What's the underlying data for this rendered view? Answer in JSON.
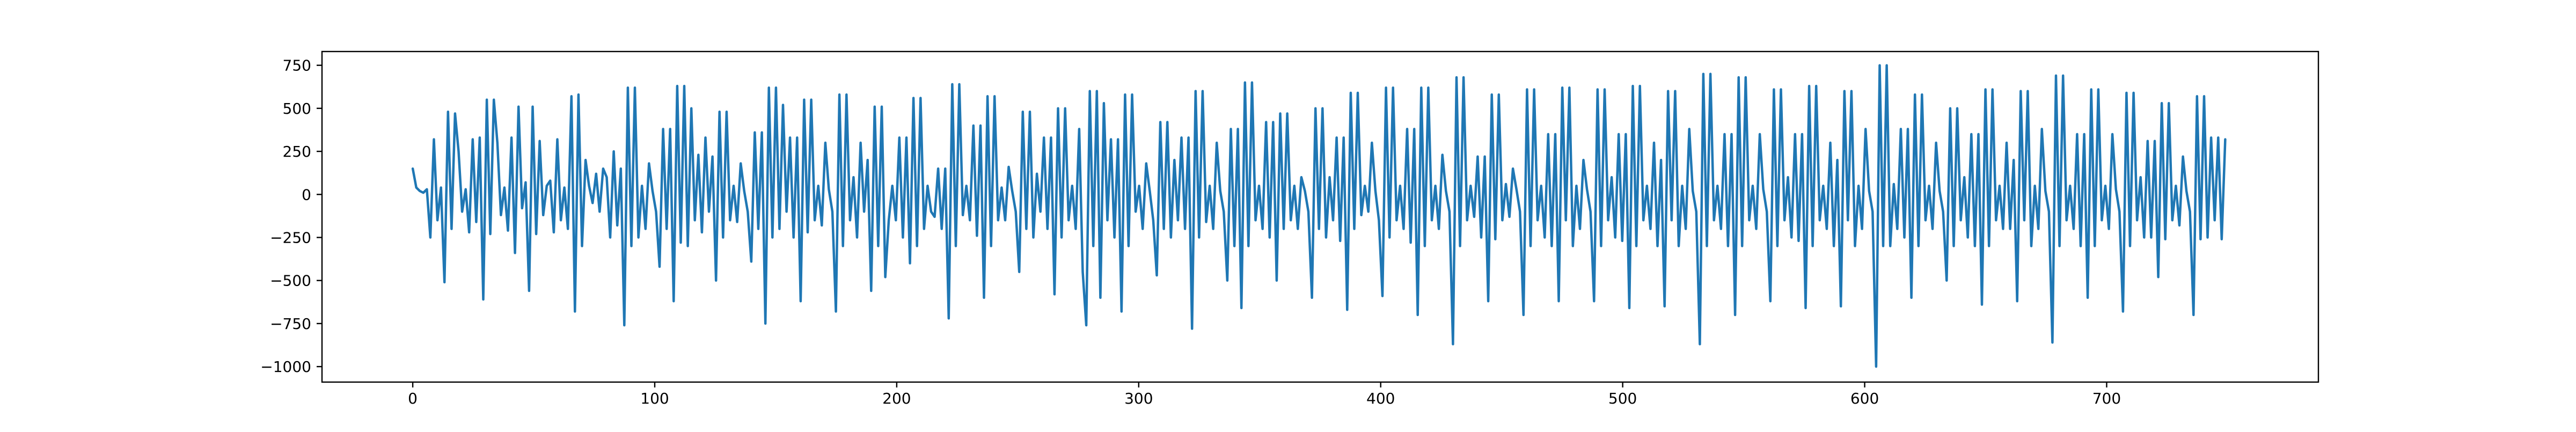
{
  "chart_data": {
    "type": "line",
    "title": "",
    "xlabel": "",
    "ylabel": "",
    "xlim": [
      -37.5,
      787.5
    ],
    "ylim": [
      -1090,
      830
    ],
    "x_ticks": [
      0,
      100,
      200,
      300,
      400,
      500,
      600,
      700
    ],
    "y_ticks": [
      -1000,
      -750,
      -500,
      -250,
      0,
      250,
      500,
      750
    ],
    "grid": false,
    "legend": "none",
    "series": [
      {
        "color": "#1f77b4",
        "x_start": 0,
        "x_step": 1,
        "values": [
          150,
          40,
          20,
          10,
          30,
          -250,
          320,
          -150,
          40,
          -510,
          480,
          -200,
          470,
          250,
          -100,
          30,
          -220,
          320,
          -160,
          330,
          -610,
          550,
          -230,
          550,
          300,
          -120,
          40,
          -210,
          330,
          -340,
          510,
          -80,
          70,
          -560,
          510,
          -230,
          310,
          -120,
          50,
          80,
          -220,
          320,
          -150,
          40,
          -200,
          570,
          -680,
          580,
          -300,
          200,
          50,
          -50,
          120,
          -100,
          150,
          100,
          -250,
          250,
          -180,
          150,
          -760,
          620,
          -300,
          620,
          -250,
          50,
          -200,
          180,
          20,
          -100,
          -420,
          380,
          -200,
          380,
          -620,
          630,
          -280,
          630,
          -300,
          500,
          -150,
          230,
          -220,
          330,
          -100,
          220,
          -500,
          480,
          -250,
          480,
          -150,
          50,
          -160,
          180,
          20,
          -100,
          -390,
          360,
          -200,
          360,
          -750,
          620,
          -250,
          620,
          -200,
          520,
          -100,
          330,
          -250,
          330,
          -620,
          550,
          -220,
          550,
          -150,
          50,
          -180,
          300,
          30,
          -100,
          -680,
          580,
          -300,
          580,
          -150,
          100,
          -250,
          300,
          -100,
          200,
          -560,
          510,
          -300,
          510,
          -480,
          -150,
          50,
          -150,
          330,
          -250,
          330,
          -400,
          560,
          -300,
          560,
          -200,
          50,
          -100,
          -130,
          150,
          -200,
          150,
          -720,
          640,
          -300,
          640,
          -120,
          50,
          -150,
          400,
          -240,
          400,
          -600,
          570,
          -300,
          570,
          -150,
          40,
          -150,
          160,
          20,
          -100,
          -450,
          480,
          -200,
          480,
          -250,
          120,
          -100,
          330,
          -200,
          330,
          -580,
          500,
          -250,
          500,
          -150,
          50,
          -200,
          380,
          -450,
          -760,
          600,
          -300,
          600,
          -600,
          530,
          -150,
          320,
          -250,
          320,
          -680,
          580,
          -300,
          580,
          -100,
          50,
          -200,
          180,
          20,
          -150,
          -470,
          420,
          -200,
          420,
          -250,
          200,
          -150,
          330,
          -200,
          330,
          -780,
          600,
          -250,
          600,
          -160,
          50,
          -200,
          300,
          20,
          -100,
          -500,
          380,
          -300,
          380,
          -660,
          650,
          -300,
          650,
          -150,
          50,
          -200,
          420,
          -250,
          420,
          -500,
          470,
          -200,
          470,
          -150,
          50,
          -200,
          100,
          20,
          -100,
          -600,
          500,
          -200,
          500,
          -250,
          100,
          -150,
          330,
          -270,
          330,
          -670,
          590,
          -200,
          590,
          -120,
          50,
          -100,
          300,
          20,
          -150,
          -590,
          620,
          -250,
          620,
          -150,
          50,
          -200,
          380,
          -280,
          380,
          -700,
          620,
          -300,
          620,
          -150,
          50,
          -200,
          230,
          20,
          -100,
          -870,
          680,
          -300,
          680,
          -150,
          50,
          -130,
          220,
          -250,
          220,
          -620,
          580,
          -260,
          580,
          -150,
          60,
          -130,
          150,
          30,
          -100,
          -700,
          610,
          -300,
          610,
          -150,
          50,
          -250,
          350,
          -300,
          350,
          -620,
          620,
          -150,
          620,
          -300,
          50,
          -200,
          200,
          30,
          -100,
          -620,
          610,
          -300,
          610,
          -150,
          100,
          -250,
          350,
          -270,
          350,
          -660,
          630,
          -300,
          630,
          -150,
          50,
          -200,
          300,
          -300,
          200,
          -650,
          600,
          -150,
          600,
          -300,
          50,
          -200,
          380,
          20,
          -100,
          -870,
          700,
          -300,
          700,
          -150,
          50,
          -200,
          350,
          -300,
          350,
          -700,
          680,
          -300,
          680,
          -150,
          50,
          -200,
          350,
          30,
          -100,
          -620,
          610,
          -300,
          610,
          -150,
          100,
          -250,
          350,
          -270,
          350,
          -660,
          630,
          -300,
          630,
          -150,
          50,
          -200,
          300,
          -300,
          200,
          -650,
          600,
          -150,
          600,
          -300,
          50,
          -200,
          380,
          20,
          -100,
          -1000,
          750,
          -300,
          750,
          -300,
          60,
          -200,
          380,
          -250,
          380,
          -600,
          580,
          -300,
          580,
          -150,
          50,
          -200,
          300,
          20,
          -100,
          -500,
          500,
          -300,
          500,
          -150,
          100,
          -250,
          350,
          -300,
          350,
          -640,
          610,
          -300,
          610,
          -150,
          50,
          -200,
          300,
          -200,
          200,
          -620,
          600,
          -150,
          600,
          -300,
          50,
          -200,
          380,
          20,
          -100,
          -860,
          690,
          -300,
          690,
          -150,
          50,
          -200,
          350,
          -300,
          350,
          -600,
          610,
          -300,
          610,
          -150,
          50,
          -200,
          350,
          30,
          -100,
          -680,
          590,
          -300,
          590,
          -150,
          100,
          -250,
          310,
          -250,
          310,
          -480,
          530,
          -260,
          530,
          -150,
          50,
          -180,
          220,
          20,
          -100,
          -700,
          570,
          -260,
          570,
          -250,
          330,
          -150,
          330,
          -260,
          320
        ]
      }
    ]
  }
}
